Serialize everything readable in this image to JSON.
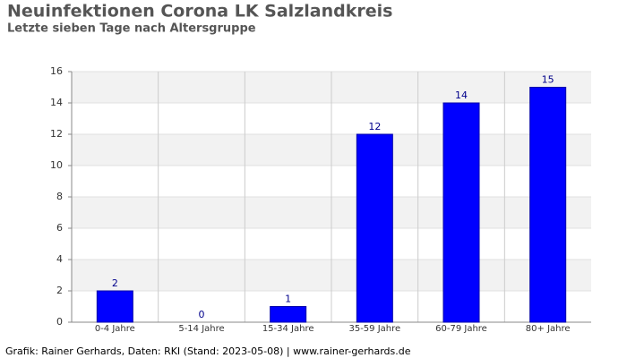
{
  "chart_data": {
    "type": "bar",
    "title": "Neuinfektionen Corona LK Salzlandkreis",
    "subtitle": "Letzte sieben Tage nach Altersgruppe",
    "categories": [
      "0-4 Jahre",
      "5-14 Jahre",
      "15-34 Jahre",
      "35-59 Jahre",
      "60-79 Jahre",
      "80+ Jahre"
    ],
    "values": [
      2,
      0,
      1,
      12,
      14,
      15
    ],
    "color": "#0000ff",
    "ylim": [
      0,
      16
    ],
    "yticks": [
      0,
      2,
      4,
      6,
      8,
      10,
      12,
      14,
      16
    ],
    "grid": true,
    "footer": "Grafik: Rainer Gerhards, Daten: RKI (Stand: 2023-05-08) | www.rainer-gerhards.de"
  }
}
